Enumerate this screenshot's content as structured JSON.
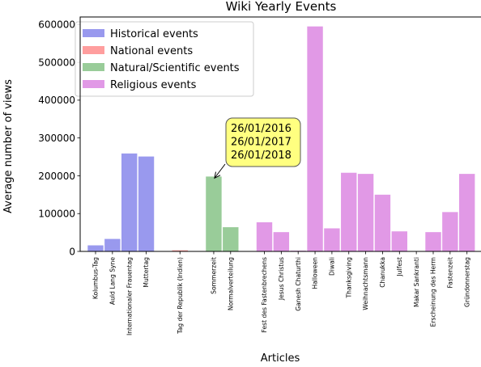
{
  "chart_data": {
    "type": "bar",
    "title": "Wiki Yearly Events",
    "xlabel": "Articles",
    "ylabel": "Average number of views",
    "ylim": [
      0,
      620000
    ],
    "yticks": [
      0,
      100000,
      200000,
      300000,
      400000,
      500000,
      600000
    ],
    "ytick_labels": [
      "0",
      "100000",
      "200000",
      "300000",
      "400000",
      "500000",
      "600000"
    ],
    "legend_placement": "top-left",
    "grid": false,
    "series": [
      {
        "name": "Historical events",
        "color": "#9999ee",
        "items": [
          {
            "label": "Kolumbus-Tag",
            "value": 16000
          },
          {
            "label": "Auld Lang Syne",
            "value": 33000
          },
          {
            "label": "Internationaler Frauentag",
            "value": 259000
          },
          {
            "label": "Muttertag",
            "value": 251000
          }
        ]
      },
      {
        "name": "National events",
        "color": "#ff9e9e",
        "items": [
          {
            "label": "Tag der Republik (Indien)",
            "value": 3000
          }
        ]
      },
      {
        "name": "Natural/Scientific events",
        "color": "#99cc99",
        "items": [
          {
            "label": "Sommerzeit",
            "value": 198000
          },
          {
            "label": "Normalverteilung",
            "value": 64000
          }
        ]
      },
      {
        "name": "Religious events",
        "color": "#e199e6",
        "items": [
          {
            "label": "Fest des Fastenbrechens",
            "value": 77000
          },
          {
            "label": "Jesus Christus",
            "value": 51000
          },
          {
            "label": "Ganesh Chaturthi",
            "value": 2000
          },
          {
            "label": "Halloween",
            "value": 595000
          },
          {
            "label": "Diwali",
            "value": 61000
          },
          {
            "label": "Thanksgiving",
            "value": 208000
          },
          {
            "label": "Weihnachtsmann",
            "value": 205000
          },
          {
            "label": "Chanukka",
            "value": 150000
          },
          {
            "label": "Julfest",
            "value": 53000
          },
          {
            "label": "Makar Sankranti",
            "value": 0
          },
          {
            "label": "Erscheinung des Herrn",
            "value": 51000
          },
          {
            "label": "Fastenzeit",
            "value": 104000
          },
          {
            "label": "Gründonnerstag",
            "value": 205000
          }
        ]
      }
    ],
    "annotation": {
      "lines": [
        "26/01/2016",
        "26/01/2017",
        "26/01/2018"
      ],
      "target_label": "Sommerzeit",
      "box_color": "#ffff80"
    }
  }
}
